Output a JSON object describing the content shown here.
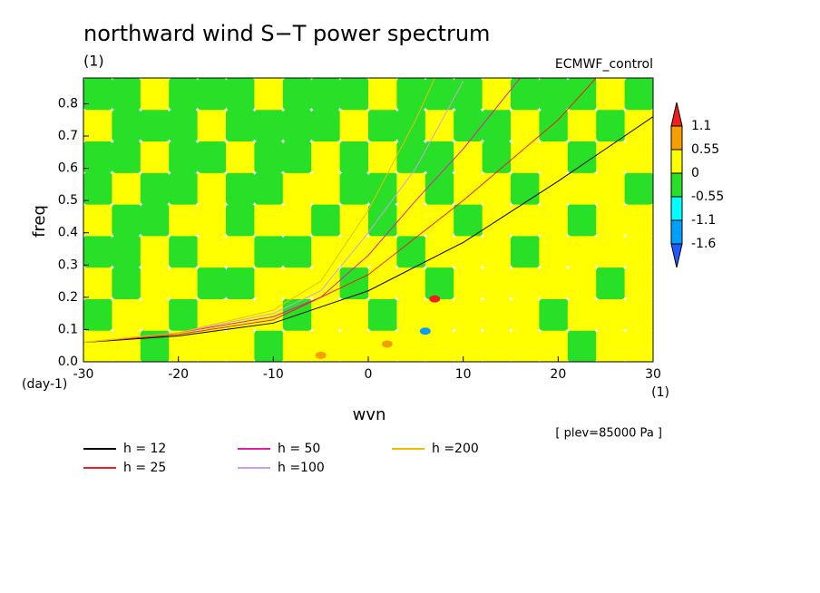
{
  "chart_data": {
    "type": "contour",
    "title": "northward wind S−T power spectrum",
    "subtitle": "(1)",
    "annotation": "ECMWF_control",
    "level_note": "[ plev=85000 Pa ]",
    "x_label": "wvn",
    "x_unit": "(1)",
    "y_label": "freq",
    "y_unit": "(day-1)",
    "xlim": [
      -30,
      30
    ],
    "xticks": [
      -30,
      -20,
      -10,
      0,
      10,
      20,
      30
    ],
    "ylim": [
      0,
      0.88
    ],
    "yticks": [
      {
        "value": 0,
        "label": "0.0"
      },
      0.1,
      0.2,
      0.3,
      0.4,
      0.5,
      0.6,
      0.7,
      0.8
    ],
    "levels": [
      -1.6,
      -1.1,
      -0.55,
      0,
      0.55,
      1.1
    ],
    "level_colors": [
      "#1e5aff",
      "#00a0ff",
      "#00ffff",
      "#28e028",
      "#ffff00",
      "#f5a000",
      "#f01e1e"
    ],
    "field": [
      [
        0.3,
        0.3,
        -0.3,
        0.3,
        0.3,
        0.3,
        -0.3,
        0.3,
        0.3,
        0.3,
        0.3,
        0.3,
        0.3,
        0.3,
        0.3,
        0.3,
        0.3,
        -0.3,
        0.3,
        0.3
      ],
      [
        -0.3,
        0.3,
        0.3,
        -0.3,
        0.3,
        0.3,
        0.3,
        -0.3,
        0.3,
        0.3,
        -0.3,
        0.3,
        0.3,
        0.3,
        0.3,
        0.3,
        -0.3,
        0.3,
        0.3,
        0.3
      ],
      [
        0.3,
        -0.3,
        0.3,
        0.3,
        -0.3,
        -0.3,
        0.3,
        0.3,
        0.3,
        -0.3,
        0.3,
        0.3,
        -0.3,
        0.3,
        0.3,
        0.3,
        0.3,
        0.3,
        -0.3,
        0.3
      ],
      [
        -0.3,
        -0.3,
        0.3,
        -0.3,
        0.3,
        0.3,
        -0.3,
        -0.3,
        0.3,
        0.3,
        0.3,
        -0.3,
        0.3,
        0.3,
        0.3,
        -0.3,
        0.3,
        0.3,
        0.3,
        0.3
      ],
      [
        0.3,
        -0.3,
        -0.3,
        0.3,
        0.3,
        -0.3,
        0.3,
        0.3,
        -0.3,
        0.3,
        -0.3,
        0.3,
        0.3,
        -0.3,
        0.3,
        0.3,
        0.3,
        -0.3,
        0.3,
        0.3
      ],
      [
        -0.3,
        0.3,
        -0.3,
        -0.3,
        0.3,
        -0.3,
        -0.3,
        0.3,
        0.3,
        -0.3,
        -0.3,
        0.3,
        -0.3,
        0.3,
        0.3,
        -0.3,
        0.3,
        0.3,
        0.3,
        -0.3
      ],
      [
        -0.3,
        -0.3,
        0.3,
        -0.3,
        -0.3,
        0.3,
        -0.3,
        -0.3,
        0.3,
        -0.3,
        0.3,
        -0.3,
        -0.3,
        0.3,
        -0.3,
        0.3,
        0.3,
        -0.3,
        0.3,
        0.3
      ],
      [
        0.3,
        -0.3,
        -0.3,
        -0.3,
        0.3,
        -0.3,
        -0.3,
        -0.3,
        -0.3,
        0.3,
        -0.3,
        -0.3,
        0.3,
        -0.3,
        -0.3,
        0.3,
        -0.3,
        0.3,
        -0.3,
        0.3
      ],
      [
        -0.3,
        -0.3,
        0.3,
        -0.3,
        -0.3,
        -0.3,
        0.3,
        -0.3,
        -0.3,
        -0.3,
        0.3,
        -0.3,
        -0.3,
        -0.3,
        0.3,
        -0.3,
        -0.3,
        -0.3,
        0.3,
        -0.3
      ]
    ],
    "spots": {
      "x": [
        7,
        6,
        2,
        -5
      ],
      "y": [
        0.195,
        0.095,
        0.055,
        0.02
      ],
      "values": [
        1.2,
        -1.2,
        0.7,
        0.7
      ]
    },
    "series": [
      {
        "name": "h = 12",
        "color": "#000000",
        "x": [
          -30,
          -20,
          -10,
          0,
          10,
          20,
          30
        ],
        "values": [
          0.06,
          0.08,
          0.12,
          0.22,
          0.37,
          0.56,
          0.76
        ]
      },
      {
        "name": "h = 25",
        "color": "#f01e1e",
        "x": [
          -30,
          -20,
          -10,
          0,
          10,
          20,
          24
        ],
        "values": [
          0.06,
          0.085,
          0.13,
          0.27,
          0.5,
          0.75,
          0.88
        ]
      },
      {
        "name": "h = 50",
        "color": "#e020a0",
        "x": [
          -30,
          -20,
          -10,
          -5,
          0,
          5,
          10,
          16
        ],
        "values": [
          0.06,
          0.09,
          0.14,
          0.2,
          0.33,
          0.5,
          0.66,
          0.88
        ]
      },
      {
        "name": "h =100",
        "color": "#d0a0e0",
        "x": [
          -30,
          -20,
          -10,
          -5,
          0,
          5,
          10
        ],
        "values": [
          0.06,
          0.09,
          0.15,
          0.22,
          0.4,
          0.6,
          0.87
        ]
      },
      {
        "name": "h =200",
        "color": "#e6c000",
        "x": [
          -30,
          -20,
          -10,
          -5,
          0,
          5,
          7
        ],
        "values": [
          0.06,
          0.09,
          0.16,
          0.25,
          0.47,
          0.75,
          0.88
        ]
      }
    ]
  }
}
